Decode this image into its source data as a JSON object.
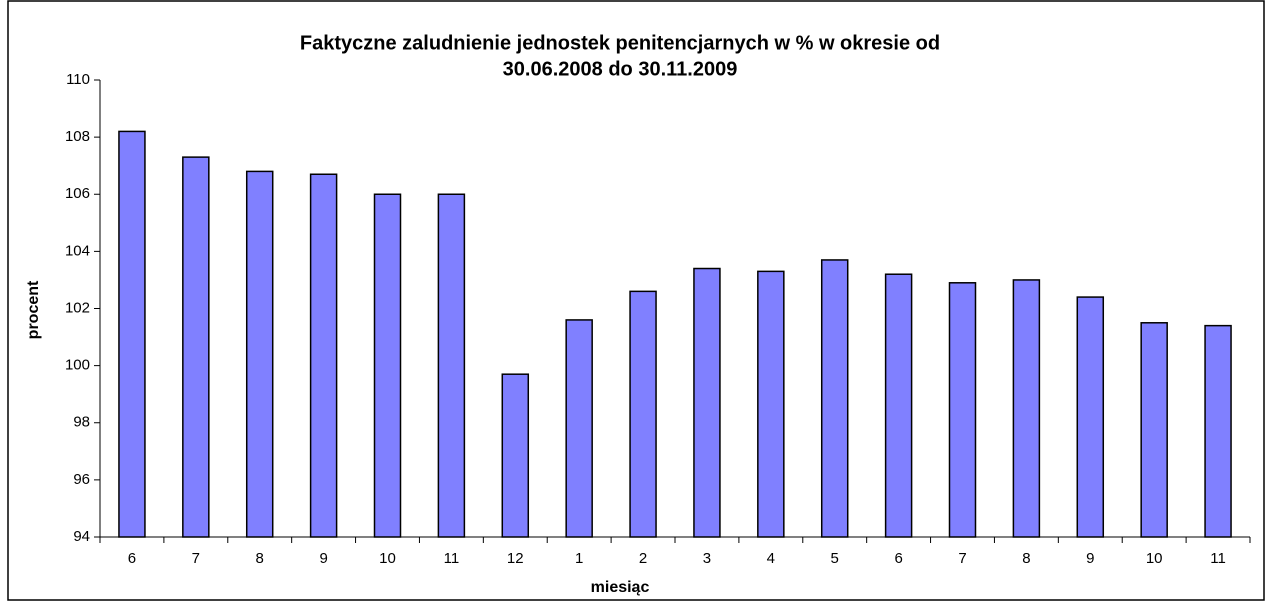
{
  "chart_data": {
    "type": "bar",
    "title": [
      "Faktyczne zaludnienie jednostek penitencjarnych w % w okresie od",
      "30.06.2008 do 30.11.2009"
    ],
    "x_label": "miesiąc",
    "y_label": "procent",
    "categories": [
      "6",
      "7",
      "8",
      "9",
      "10",
      "11",
      "12",
      "1",
      "2",
      "3",
      "4",
      "5",
      "6",
      "7",
      "8",
      "9",
      "10",
      "11"
    ],
    "values": [
      108.2,
      107.3,
      106.8,
      106.7,
      106.0,
      106.0,
      99.7,
      101.6,
      102.6,
      103.4,
      103.3,
      103.7,
      103.2,
      102.9,
      103.0,
      102.4,
      101.5,
      101.4
    ],
    "color": "#8080ff",
    "ylim": [
      94,
      110
    ],
    "yticks": [
      94,
      96,
      98,
      100,
      102,
      104,
      106,
      108,
      110
    ],
    "grid": false
  }
}
